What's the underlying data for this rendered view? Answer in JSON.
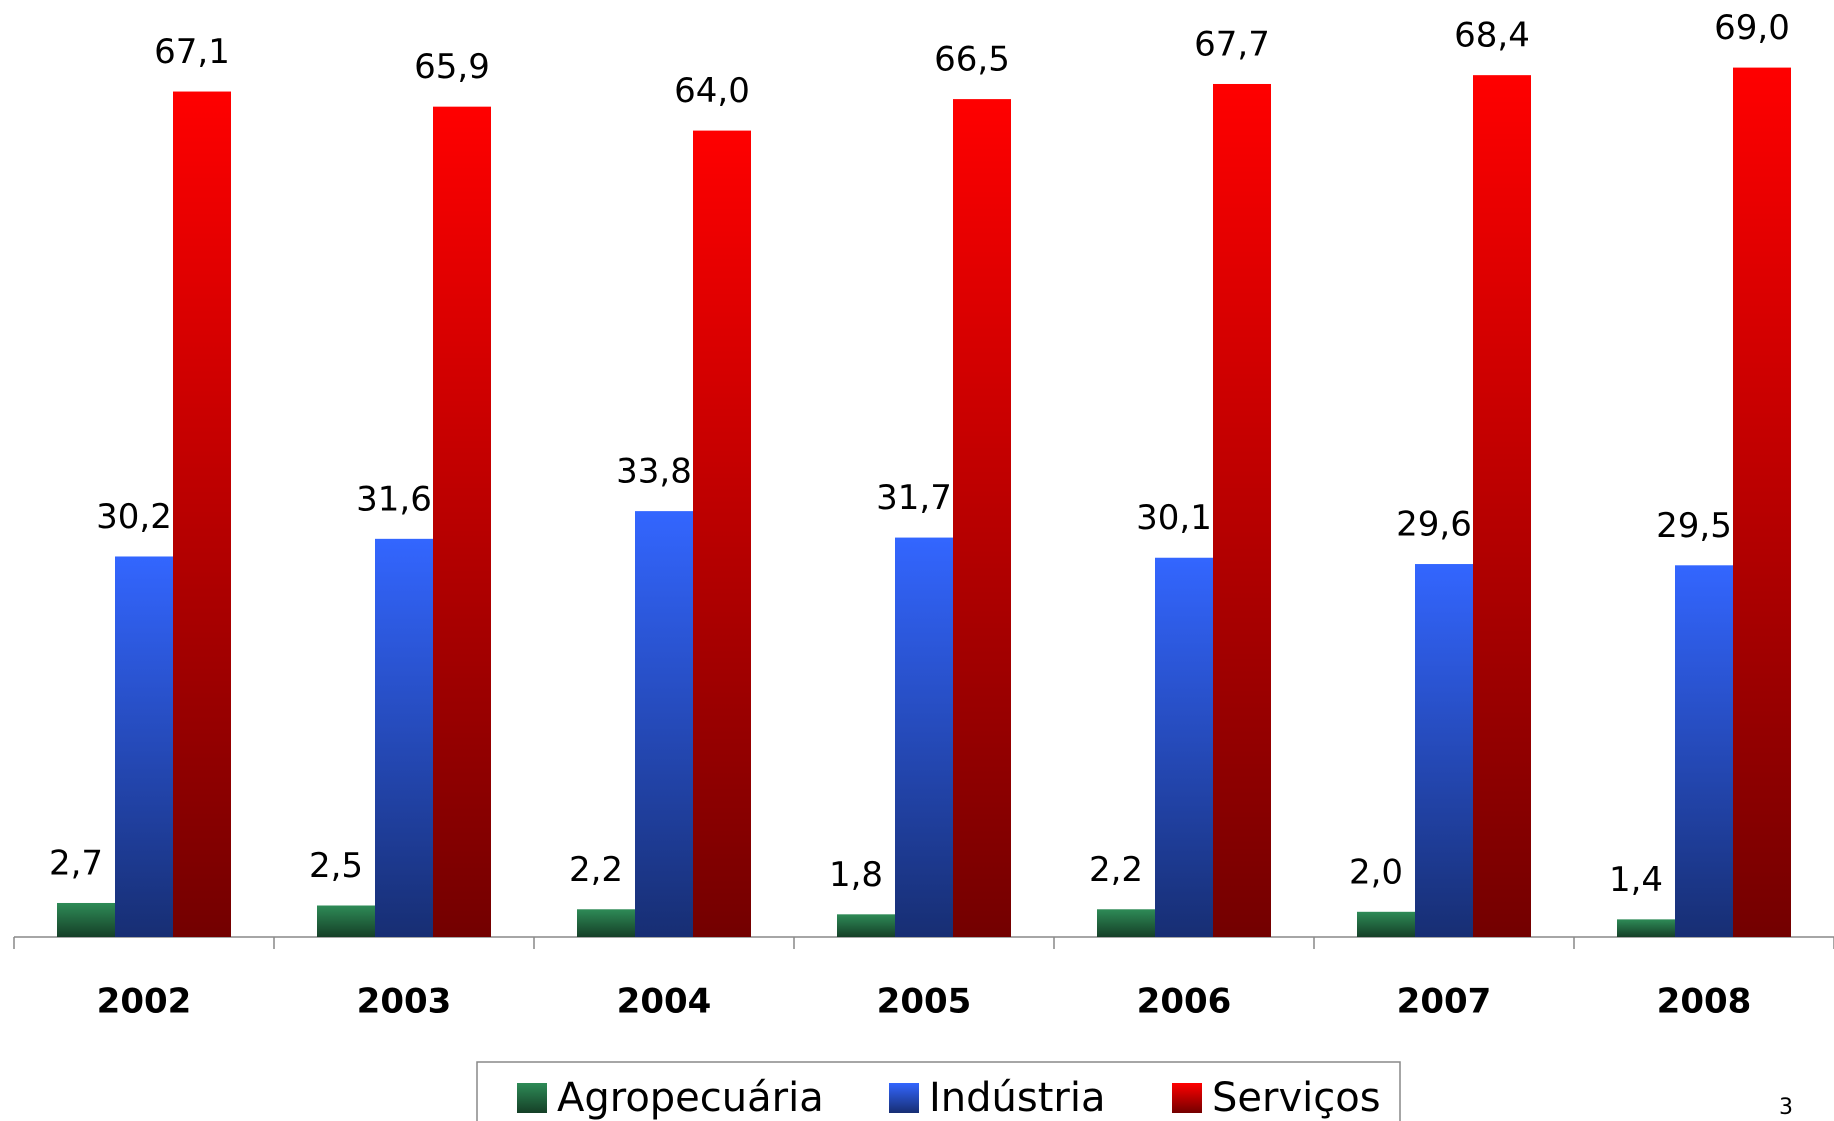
{
  "chart_data": {
    "type": "bar",
    "categories": [
      "2002",
      "2003",
      "2004",
      "2005",
      "2006",
      "2007",
      "2008"
    ],
    "series": [
      {
        "name": "Agropecuária",
        "color": "#2e8b57",
        "values": [
          2.7,
          2.5,
          2.2,
          1.8,
          2.2,
          2.0,
          1.4
        ],
        "value_labels": [
          "2,7",
          "2,5",
          "2,2",
          "1,8",
          "2,2",
          "2,0",
          "1,4"
        ]
      },
      {
        "name": "Indústria",
        "color": "#3366ff",
        "values": [
          30.2,
          31.6,
          33.8,
          31.7,
          30.1,
          29.6,
          29.5
        ],
        "value_labels": [
          "30,2",
          "31,6",
          "33,8",
          "31,7",
          "30,1",
          "29,6",
          "29,5"
        ]
      },
      {
        "name": "Serviços",
        "color": "#ff0000",
        "values": [
          67.1,
          65.9,
          64.0,
          66.5,
          67.7,
          68.4,
          69.0
        ],
        "value_labels": [
          "67,1",
          "65,9",
          "64,0",
          "66,5",
          "67,7",
          "68,4",
          "69,0"
        ]
      }
    ],
    "ylim": [
      0,
      70
    ],
    "legend": "bottom"
  },
  "page_number": "3"
}
